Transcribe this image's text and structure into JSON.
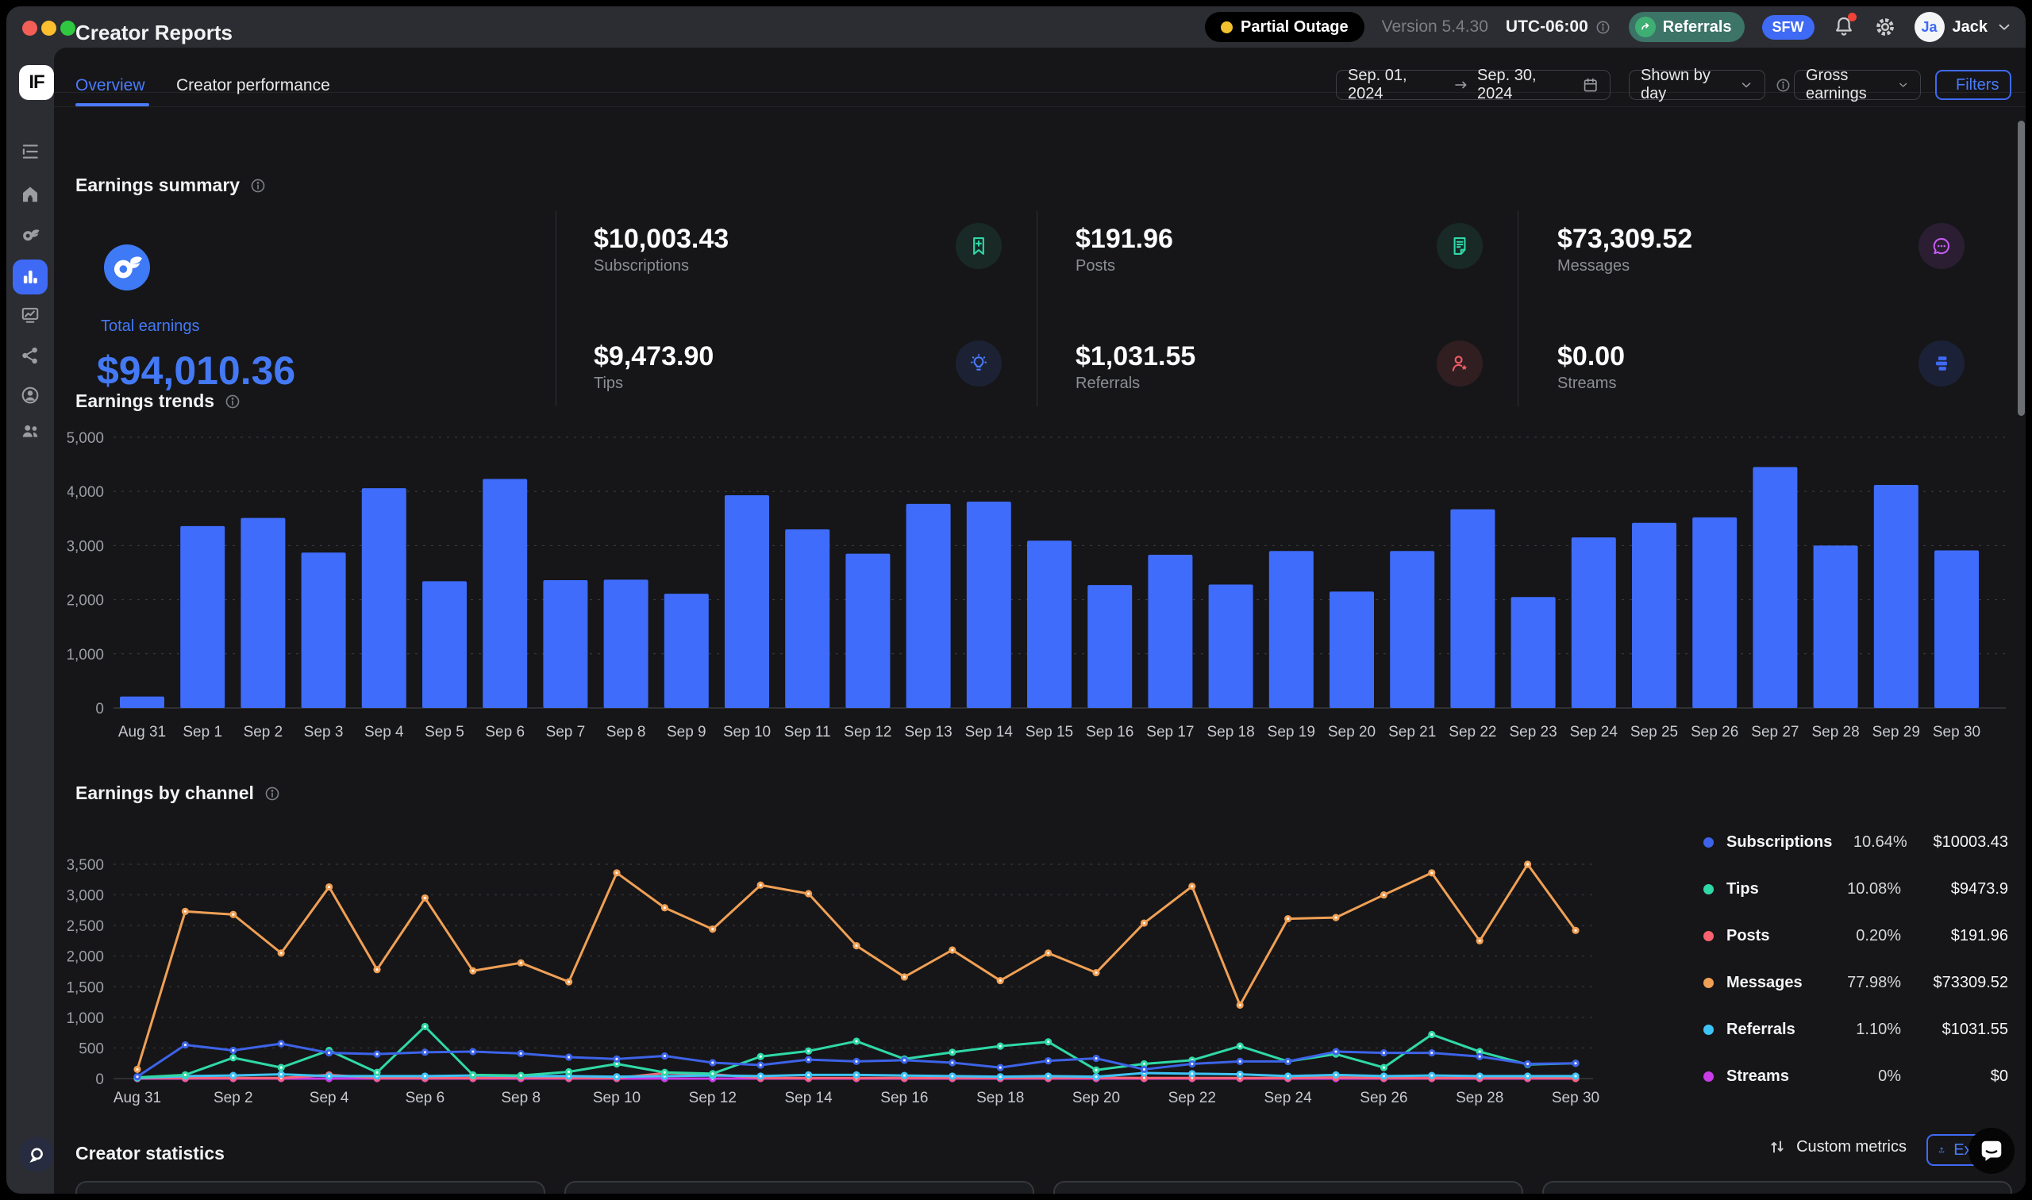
{
  "topbar": {
    "status_badge": {
      "label": "Partial Outage",
      "dot_color": "#f2c12e"
    },
    "version": "Version 5.4.30",
    "timezone": "UTC-06:00",
    "referrals_button": {
      "label": "Referrals"
    },
    "sfw_badge": {
      "label": "SFW"
    },
    "user": {
      "initials": "Ja",
      "name": "Jack"
    },
    "icons": [
      "bell-icon",
      "gear-icon",
      "chevron-down-icon",
      "info-icon"
    ]
  },
  "sidebar": {
    "logo_text": "IF",
    "items": [
      {
        "icon": "list-icon"
      },
      {
        "icon": "home-icon"
      },
      {
        "icon": "fans-icon"
      },
      {
        "icon": "bar-chart-icon",
        "active": true
      },
      {
        "icon": "monitor-chart-icon"
      },
      {
        "icon": "share-icon"
      },
      {
        "icon": "account-icon"
      },
      {
        "icon": "team-icon"
      }
    ],
    "bottom_icon": "support-chat-icon"
  },
  "header": {
    "title": "Creator Reports"
  },
  "tabs": [
    {
      "label": "Overview",
      "active": true
    },
    {
      "label": "Creator performance",
      "active": false
    }
  ],
  "controls": {
    "date_from": "Sep. 01, 2024",
    "date_to": "Sep. 30, 2024",
    "group_by": "Shown by day",
    "metric": "Gross earnings",
    "filters_label": "Filters"
  },
  "earnings_summary": {
    "title": "Earnings summary",
    "total": {
      "label": "Total earnings",
      "value": "$94,010.36",
      "color": "#4479f5"
    },
    "items": [
      {
        "label": "Subscriptions",
        "value": "$10,003.43",
        "icon": "bookmark-plus-icon",
        "color": "#2fd9a7"
      },
      {
        "label": "Tips",
        "value": "$9,473.90",
        "icon": "lightbulb-icon",
        "color": "#4b7bfb"
      },
      {
        "label": "Posts",
        "value": "$191.96",
        "icon": "document-icon",
        "color": "#2fd9a7"
      },
      {
        "label": "Referrals",
        "value": "$1,031.55",
        "icon": "person-star-icon",
        "color": "#f05c66"
      },
      {
        "label": "Messages",
        "value": "$73,309.52",
        "icon": "chat-bubble-icon",
        "color": "#c45cf2"
      },
      {
        "label": "Streams",
        "value": "$0.00",
        "icon": "stream-bars-icon",
        "color": "#3f6af5"
      }
    ]
  },
  "chart_data": [
    {
      "type": "bar",
      "title": "Earnings trends",
      "categories": [
        "Aug 31",
        "Sep 1",
        "Sep 2",
        "Sep 3",
        "Sep 4",
        "Sep 5",
        "Sep 6",
        "Sep 7",
        "Sep 8",
        "Sep 9",
        "Sep 10",
        "Sep 11",
        "Sep 12",
        "Sep 13",
        "Sep 14",
        "Sep 15",
        "Sep 16",
        "Sep 17",
        "Sep 18",
        "Sep 19",
        "Sep 20",
        "Sep 21",
        "Sep 22",
        "Sep 23",
        "Sep 24",
        "Sep 25",
        "Sep 26",
        "Sep 27",
        "Sep 28",
        "Sep 29",
        "Sep 30"
      ],
      "values": [
        210,
        3360,
        3510,
        2870,
        4060,
        2340,
        4230,
        2360,
        2370,
        2110,
        3930,
        3300,
        2850,
        3770,
        3810,
        3090,
        2270,
        2830,
        2280,
        2900,
        2150,
        2900,
        3670,
        2050,
        3150,
        3420,
        3520,
        4450,
        3000,
        4120,
        2910
      ],
      "xlabel": "",
      "ylabel": "",
      "ylim": [
        0,
        5000
      ],
      "yticks": [
        0,
        1000,
        2000,
        3000,
        4000,
        5000
      ],
      "bar_color": "#3f6cfa",
      "grid": "horizontal-dashed",
      "legend_position": "none"
    },
    {
      "type": "line",
      "title": "Earnings by channel",
      "x": [
        "Aug 31",
        "Sep 1",
        "Sep 2",
        "Sep 3",
        "Sep 4",
        "Sep 5",
        "Sep 6",
        "Sep 7",
        "Sep 8",
        "Sep 9",
        "Sep 10",
        "Sep 11",
        "Sep 12",
        "Sep 13",
        "Sep 14",
        "Sep 15",
        "Sep 16",
        "Sep 17",
        "Sep 18",
        "Sep 19",
        "Sep 20",
        "Sep 21",
        "Sep 22",
        "Sep 23",
        "Sep 24",
        "Sep 25",
        "Sep 26",
        "Sep 27",
        "Sep 28",
        "Sep 29",
        "Sep 30"
      ],
      "x_ticks_every": 2,
      "ylim": [
        0,
        3500
      ],
      "yticks": [
        0,
        500,
        1000,
        1500,
        2000,
        2500,
        3000,
        3500
      ],
      "grid": "horizontal-dashed",
      "legend_position": "right",
      "series": [
        {
          "name": "Subscriptions",
          "color": "#3d63e8",
          "percent": "10.64%",
          "amount": "$10003.43",
          "values": [
            30,
            550,
            460,
            570,
            420,
            400,
            430,
            440,
            410,
            350,
            320,
            370,
            260,
            220,
            310,
            280,
            300,
            260,
            180,
            290,
            330,
            150,
            240,
            280,
            280,
            440,
            420,
            420,
            360,
            240,
            250
          ]
        },
        {
          "name": "Tips",
          "color": "#2fd9a7",
          "percent": "10.08%",
          "amount": "$9473.9",
          "values": [
            20,
            60,
            340,
            180,
            460,
            100,
            850,
            60,
            50,
            110,
            240,
            100,
            80,
            360,
            450,
            610,
            320,
            430,
            530,
            600,
            140,
            240,
            300,
            530,
            280,
            400,
            180,
            720,
            440,
            230,
            250
          ]
        },
        {
          "name": "Posts",
          "color": "#f8636f",
          "percent": "0.20%",
          "amount": "$191.96",
          "values": [
            5,
            10,
            10,
            10,
            60,
            10,
            10,
            10,
            15,
            10,
            10,
            90,
            70,
            10,
            10,
            10,
            10,
            10,
            10,
            10,
            15,
            10,
            10,
            10,
            10,
            20,
            10,
            10,
            10,
            10,
            5
          ]
        },
        {
          "name": "Messages",
          "color": "#f0a055",
          "percent": "77.98%",
          "amount": "$73309.52",
          "values": [
            150,
            2730,
            2680,
            2050,
            3130,
            1780,
            2950,
            1760,
            1890,
            1580,
            3360,
            2790,
            2440,
            3160,
            3020,
            2170,
            1660,
            2100,
            1600,
            2050,
            1730,
            2540,
            3140,
            1200,
            2610,
            2630,
            3000,
            3360,
            2250,
            3500,
            2420
          ]
        },
        {
          "name": "Referrals",
          "color": "#3ec3f7",
          "percent": "1.10%",
          "amount": "$1031.55",
          "values": [
            10,
            40,
            50,
            70,
            40,
            40,
            40,
            50,
            40,
            40,
            30,
            40,
            50,
            40,
            60,
            60,
            50,
            40,
            30,
            40,
            30,
            90,
            80,
            70,
            40,
            60,
            40,
            50,
            40,
            40,
            40
          ]
        },
        {
          "name": "Streams",
          "color": "#c93ce8",
          "percent": "0%",
          "amount": "$0",
          "values": [
            0,
            0,
            0,
            0,
            0,
            0,
            0,
            0,
            0,
            0,
            0,
            0,
            0,
            0,
            0,
            0,
            0,
            0,
            0,
            0,
            0,
            0,
            0,
            0,
            0,
            0,
            0,
            0,
            0,
            0,
            0
          ]
        }
      ]
    }
  ],
  "creator_statistics": {
    "title": "Creator statistics",
    "custom_metrics_label": "Custom metrics",
    "export_label": "Export"
  }
}
